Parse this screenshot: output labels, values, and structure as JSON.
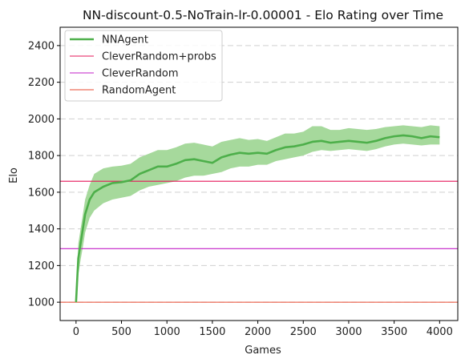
{
  "chart_data": {
    "type": "line",
    "title": "NN-discount-0.5-NoTrain-lr-0.00001 - Elo Rating over Time",
    "xlabel": "Games",
    "ylabel": "Elo",
    "xlim": [
      -175,
      4200
    ],
    "ylim": [
      900,
      2500
    ],
    "xticks": [
      0,
      500,
      1000,
      1500,
      2000,
      2500,
      3000,
      3500,
      4000
    ],
    "yticks": [
      1000,
      1200,
      1400,
      1600,
      1800,
      2000,
      2200,
      2400
    ],
    "grid": "horizontal dashed",
    "legend_position": "top-left",
    "series": [
      {
        "name": "NNAgent",
        "color": "#4daf4a",
        "band_color": "#a6d99c",
        "x": [
          0,
          25,
          50,
          75,
          100,
          150,
          200,
          300,
          400,
          500,
          600,
          700,
          800,
          900,
          1000,
          1100,
          1200,
          1300,
          1400,
          1500,
          1600,
          1700,
          1800,
          1900,
          2000,
          2100,
          2200,
          2300,
          2400,
          2500,
          2600,
          2700,
          2800,
          2900,
          3000,
          3100,
          3200,
          3300,
          3400,
          3500,
          3600,
          3700,
          3800,
          3900,
          4000
        ],
        "values": [
          1000,
          1240,
          1320,
          1400,
          1480,
          1560,
          1600,
          1630,
          1650,
          1655,
          1665,
          1700,
          1720,
          1740,
          1740,
          1755,
          1775,
          1780,
          1770,
          1760,
          1790,
          1805,
          1815,
          1810,
          1815,
          1810,
          1830,
          1845,
          1850,
          1860,
          1875,
          1880,
          1870,
          1875,
          1880,
          1875,
          1870,
          1880,
          1895,
          1905,
          1910,
          1905,
          1895,
          1905,
          1900
        ],
        "lower": [
          1000,
          1150,
          1230,
          1300,
          1380,
          1460,
          1500,
          1540,
          1560,
          1570,
          1580,
          1610,
          1630,
          1640,
          1650,
          1660,
          1680,
          1690,
          1690,
          1700,
          1710,
          1730,
          1740,
          1740,
          1750,
          1750,
          1770,
          1780,
          1790,
          1800,
          1820,
          1830,
          1825,
          1830,
          1835,
          1830,
          1825,
          1835,
          1850,
          1860,
          1865,
          1860,
          1855,
          1860,
          1860
        ],
        "upper": [
          1000,
          1320,
          1400,
          1480,
          1560,
          1640,
          1700,
          1730,
          1740,
          1745,
          1755,
          1790,
          1810,
          1830,
          1830,
          1845,
          1865,
          1870,
          1860,
          1850,
          1875,
          1885,
          1895,
          1885,
          1890,
          1880,
          1900,
          1920,
          1920,
          1930,
          1960,
          1960,
          1940,
          1940,
          1950,
          1945,
          1940,
          1945,
          1955,
          1960,
          1965,
          1960,
          1955,
          1965,
          1960
        ]
      }
    ],
    "reference_lines": [
      {
        "name": "CleverRandom+probs",
        "value": 1660,
        "color": "#e5175a"
      },
      {
        "name": "CleverRandom",
        "value": 1292,
        "color": "#c21fc8"
      },
      {
        "name": "RandomAgent",
        "value": 1000,
        "color": "#e8492f"
      }
    ]
  }
}
